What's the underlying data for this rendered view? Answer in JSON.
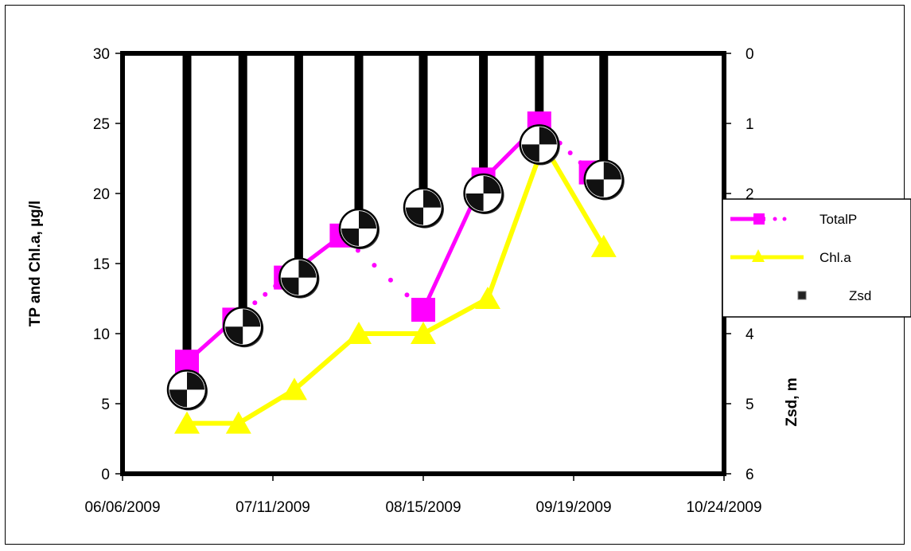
{
  "chart_data": {
    "type": "line",
    "title": "",
    "xlabel": "",
    "ylabel": "TP and Chl.a, µg/l",
    "y2label": "Zsd, m",
    "xlim": [
      "2009-06-06",
      "2009-10-24"
    ],
    "x_ticks": [
      "06/06/2009",
      "07/11/2009",
      "08/15/2009",
      "09/19/2009",
      "10/24/2009"
    ],
    "ylim": [
      0,
      30
    ],
    "y_ticks": [
      "0",
      "5",
      "10",
      "15",
      "20",
      "25",
      "30"
    ],
    "y2lim": [
      6,
      0
    ],
    "y2_ticks": [
      "0",
      "1",
      "2",
      "3",
      "4",
      "5",
      "6"
    ],
    "grid": false,
    "legend": "right",
    "series": [
      {
        "name": "TotalP",
        "axis": "left",
        "color": "#FF00FF",
        "marker": "square",
        "style": "solid-with-dotted-gaps",
        "points": [
          {
            "x": "2009-06-21",
            "y": 8.0
          },
          {
            "x": "2009-07-02",
            "y": 11.0
          },
          {
            "x": "2009-07-14",
            "y": 14.0
          },
          {
            "x": "2009-07-27",
            "y": 17.0
          },
          {
            "x": "2009-08-15",
            "y": 11.7
          },
          {
            "x": "2009-08-29",
            "y": 21.0
          },
          {
            "x": "2009-09-11",
            "y": 25.0
          },
          {
            "x": "2009-09-23",
            "y": 21.5
          }
        ],
        "segments": [
          "solid",
          "dotted",
          "solid",
          "dotted",
          "solid",
          "solid",
          "dotted"
        ]
      },
      {
        "name": "Chl.a",
        "axis": "left",
        "color": "#FFFF00",
        "marker": "triangle",
        "points": [
          {
            "x": "2009-06-21",
            "y": 3.6
          },
          {
            "x": "2009-07-03",
            "y": 3.6
          },
          {
            "x": "2009-07-16",
            "y": 6.0
          },
          {
            "x": "2009-07-31",
            "y": 10.0
          },
          {
            "x": "2009-08-15",
            "y": 10.0
          },
          {
            "x": "2009-08-30",
            "y": 12.5
          },
          {
            "x": "2009-09-12",
            "y": 23.5
          },
          {
            "x": "2009-09-26",
            "y": 16.2
          }
        ]
      },
      {
        "name": "Zsd",
        "axis": "right",
        "color": "#000000",
        "marker": "secchi-disk",
        "style": "bars-from-top",
        "points": [
          {
            "x": "2009-06-21",
            "y": 4.8
          },
          {
            "x": "2009-07-04",
            "y": 3.9
          },
          {
            "x": "2009-07-17",
            "y": 3.2
          },
          {
            "x": "2009-07-31",
            "y": 2.5
          },
          {
            "x": "2009-08-15",
            "y": 2.2
          },
          {
            "x": "2009-08-29",
            "y": 2.0
          },
          {
            "x": "2009-09-11",
            "y": 1.3
          },
          {
            "x": "2009-09-26",
            "y": 1.8
          }
        ]
      }
    ]
  }
}
